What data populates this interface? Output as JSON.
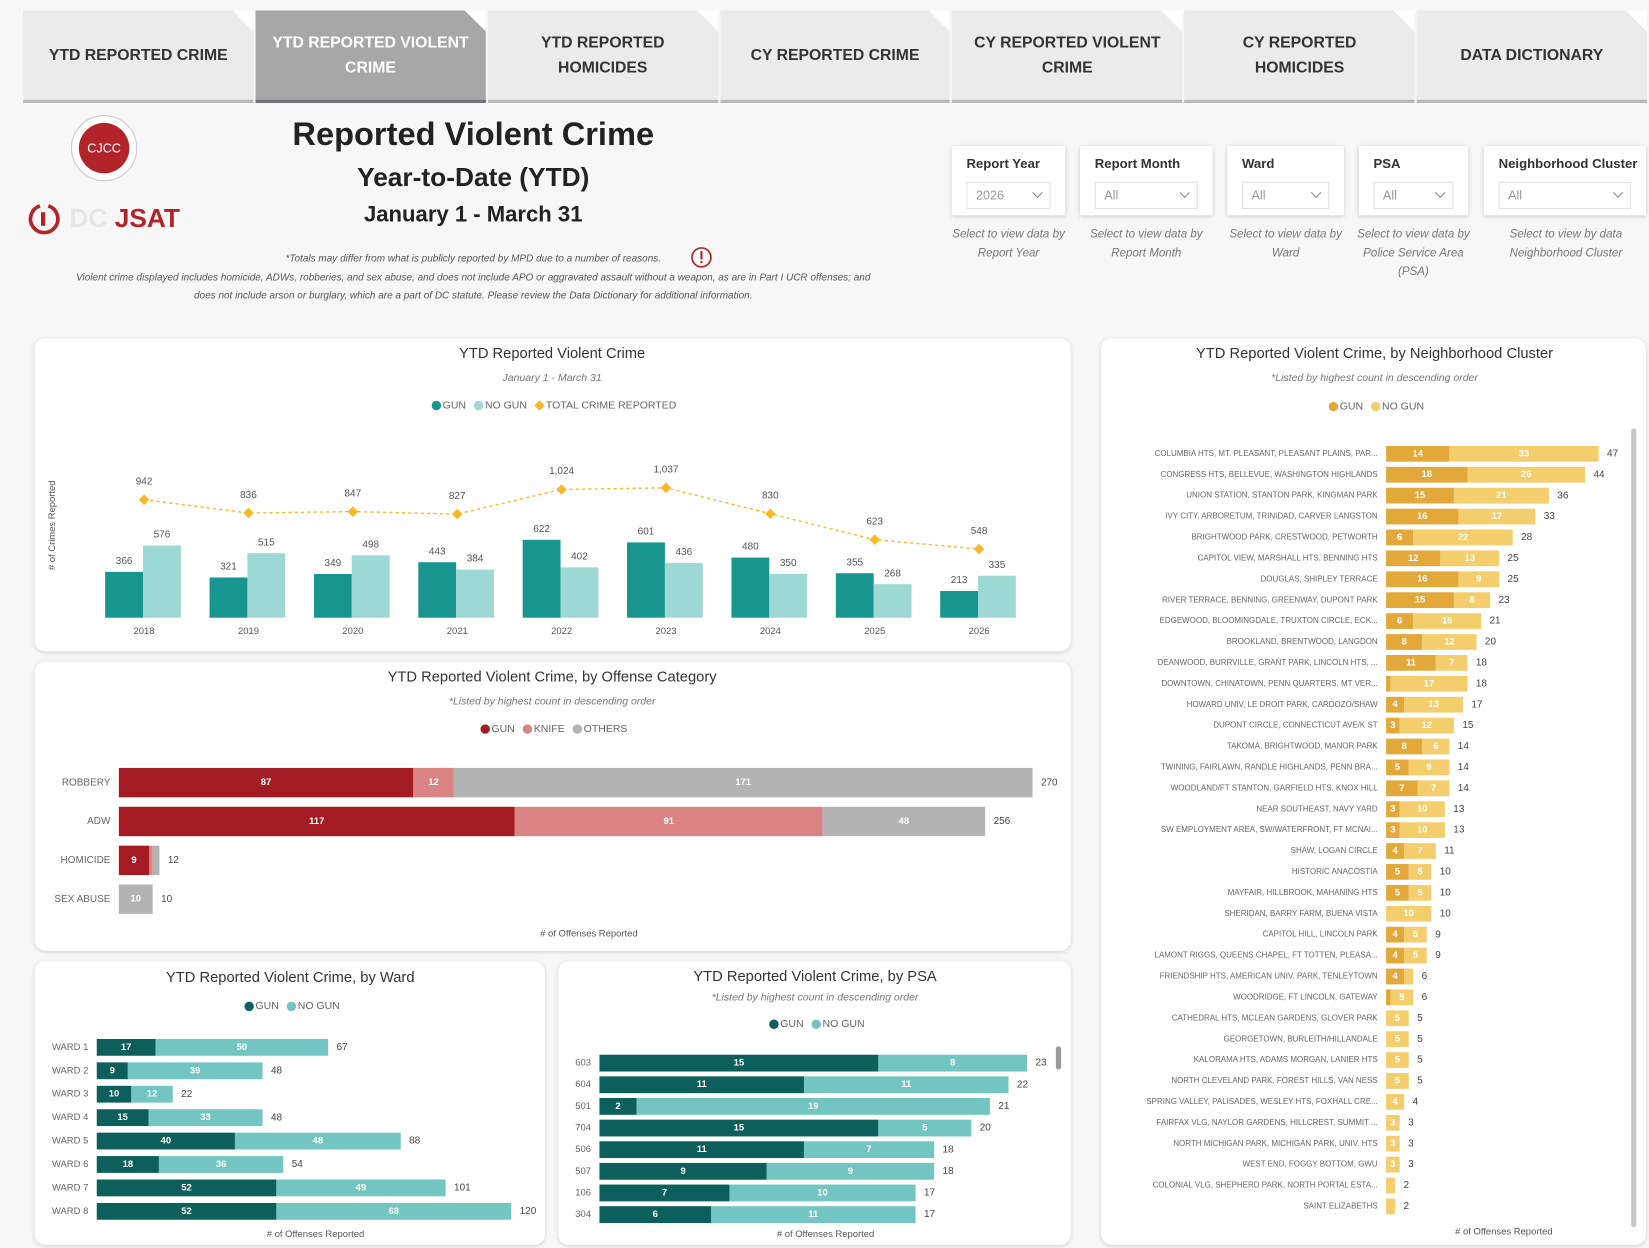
{
  "tabs": [
    {
      "label": "YTD REPORTED CRIME"
    },
    {
      "label": "YTD REPORTED VIOLENT CRIME",
      "selected": true
    },
    {
      "label": "YTD REPORTED HOMICIDES"
    },
    {
      "label": "CY REPORTED CRIME"
    },
    {
      "label": "CY REPORTED VIOLENT CRIME"
    },
    {
      "label": "CY REPORTED HOMICIDES"
    },
    {
      "label": "DATA DICTIONARY"
    }
  ],
  "header": {
    "logo_top": "CJCC",
    "logo_prefix": "DC",
    "logo_name": "JSAT",
    "title": "Reported Violent Crime",
    "subtitle": "Year-to-Date (YTD)",
    "date_range": "January 1 - March 31",
    "note": "*Totals may differ from what is publicly reported by MPD due to a number of reasons.",
    "disclaimer": [
      "Violent crime displayed includes homicide, ADWs, robberies, and sex abuse, and does not include APO or aggravated assault without a weapon, as are in Part I UCR offenses; and",
      "does not include arson or burglary, which are a part of DC statute. Please review the Data Dictionary for additional information."
    ]
  },
  "filters": [
    {
      "label": "Report Year",
      "value": "2026",
      "caption": "Select to view data by Report Year"
    },
    {
      "label": "Report Month",
      "value": "All",
      "caption": "Select to view data by Report Month"
    },
    {
      "label": "Ward",
      "value": "All",
      "caption": "Select to view data by Ward"
    },
    {
      "label": "PSA",
      "value": "All",
      "caption": "Select to view data by Police Service Area (PSA)"
    },
    {
      "label": "Neighborhood Cluster",
      "value": "All",
      "caption": "Select to view by data Neighborhood Cluster"
    }
  ],
  "chart_data": [
    {
      "type": "combo",
      "title": "YTD Reported Violent Crime",
      "subtitle": "January 1 - March 31",
      "ylabel": "# of Crimes Reported",
      "ylim": [
        0,
        1300
      ],
      "categories": [
        "2018",
        "2019",
        "2020",
        "2021",
        "2022",
        "2023",
        "2024",
        "2025",
        "2026"
      ],
      "series": [
        {
          "name": "GUN",
          "color": "#17958e",
          "values": [
            366,
            321,
            349,
            443,
            622,
            601,
            480,
            355,
            213
          ]
        },
        {
          "name": "NO GUN",
          "color": "#9ed8d4",
          "values": [
            576,
            515,
            498,
            384,
            402,
            436,
            350,
            268,
            335
          ]
        },
        {
          "name": "TOTAL CRIME REPORTED",
          "color": "#f6b826",
          "kind": "line",
          "values": [
            942,
            836,
            847,
            827,
            1024,
            1037,
            830,
            623,
            548
          ],
          "value_labels": [
            "942",
            "836",
            "847",
            "827",
            "1,024",
            "1,037",
            "830",
            "623",
            "548"
          ]
        }
      ]
    },
    {
      "type": "hbar",
      "title": "YTD Reported Violent Crime, by Offense Category",
      "subtitle": "*Listed by highest count in descending order",
      "xlabel": "# of Offenses Reported",
      "xlim": [
        0,
        280
      ],
      "categories": [
        "ROBBERY",
        "ADW",
        "HOMICIDE",
        "SEX ABUSE"
      ],
      "series": [
        {
          "name": "GUN",
          "color": "#a31c24",
          "values": [
            87,
            117,
            9,
            null
          ]
        },
        {
          "name": "KNIFE",
          "color": "#d98384",
          "values": [
            12,
            91,
            1,
            null
          ]
        },
        {
          "name": "OTHERS",
          "color": "#b3b3b3",
          "values": [
            171,
            48,
            2,
            10
          ]
        }
      ],
      "totals": [
        270,
        256,
        12,
        10
      ]
    },
    {
      "type": "hbar",
      "title": "YTD Reported Violent Crime, by Ward",
      "xlabel": "# of Offenses Reported",
      "xlim": [
        0,
        130
      ],
      "categories": [
        "WARD 1",
        "WARD 2",
        "WARD 3",
        "WARD 4",
        "WARD 5",
        "WARD 6",
        "WARD 7",
        "WARD 8"
      ],
      "series": [
        {
          "name": "GUN",
          "color": "#0d5f5c",
          "values": [
            17,
            9,
            10,
            15,
            40,
            18,
            52,
            52
          ]
        },
        {
          "name": "NO GUN",
          "color": "#72c5c0",
          "values": [
            50,
            39,
            12,
            33,
            48,
            36,
            49,
            68
          ]
        }
      ],
      "totals": [
        67,
        48,
        22,
        48,
        88,
        54,
        101,
        120
      ]
    },
    {
      "type": "hbar",
      "title": "YTD Reported Violent Crime, by PSA",
      "subtitle": "*Listed by highest count in descending order",
      "xlabel": "# of Offenses Reported",
      "xlim": [
        0,
        25
      ],
      "categories": [
        "603",
        "604",
        "501",
        "704",
        "506",
        "507",
        "106",
        "304"
      ],
      "series": [
        {
          "name": "GUN",
          "color": "#0d5f5c",
          "values": [
            15,
            11,
            2,
            15,
            11,
            9,
            7,
            6
          ]
        },
        {
          "name": "NO GUN",
          "color": "#72c5c0",
          "values": [
            8,
            11,
            19,
            5,
            7,
            9,
            10,
            11
          ]
        }
      ],
      "totals": [
        23,
        22,
        21,
        20,
        18,
        18,
        17,
        17
      ]
    },
    {
      "type": "hbar",
      "title": "YTD Reported Violent Crime, by Neighborhood Cluster",
      "subtitle": "*Listed by highest count in descending order",
      "xlabel": "# of Offenses Reported",
      "xlim": [
        0,
        50
      ],
      "categories": [
        "COLUMBIA HTS, MT. PLEASANT, PLEASANT PLAINS, PAR...",
        "CONGRESS HTS, BELLEVUE, WASHINGTON HIGHLANDS",
        "UNION STATION, STANTON PARK, KINGMAN PARK",
        "IVY CITY, ARBORETUM, TRINIDAD, CARVER LANGSTON",
        "BRIGHTWOOD PARK, CRESTWOOD, PETWORTH",
        "CAPITOL VIEW, MARSHALL HTS, BENNING HTS",
        "DOUGLAS, SHIPLEY TERRACE",
        "RIVER TERRACE, BENNING, GREENWAY, DUPONT PARK",
        "EDGEWOOD, BLOOMINGDALE, TRUXTON CIRCLE, ECK...",
        "BROOKLAND, BRENTWOOD, LANGDON",
        "DEANWOOD, BURRVILLE, GRANT PARK, LINCOLN HTS, ...",
        "DOWNTOWN, CHINATOWN, PENN QUARTERS, MT VER...",
        "HOWARD UNIV, LE DROIT PARK, CARDOZO/SHAW",
        "DUPONT CIRCLE, CONNECTICUT AVE/K ST",
        "TAKOMA, BRIGHTWOOD, MANOR PARK",
        "TWINING, FAIRLAWN, RANDLE HIGHLANDS, PENN BRA...",
        "WOODLAND/FT STANTON, GARFIELD HTS, KNOX HILL",
        "NEAR SOUTHEAST, NAVY YARD",
        "SW EMPLOYMENT AREA, SW/WATERFRONT, FT MCNAI...",
        "SHAW, LOGAN CIRCLE",
        "HISTORIC ANACOSTIA",
        "MAYFAIR, HILLBROOK, MAHANING HTS",
        "SHERIDAN, BARRY FARM, BUENA VISTA",
        "CAPITOL HILL, LINCOLN PARK",
        "LAMONT RIGGS, QUEENS CHAPEL, FT TOTTEN, PLEASA...",
        "FRIENDSHIP HTS, AMERICAN UNIV. PARK, TENLEYTOWN",
        "WOODRIDGE, FT LINCOLN, GATEWAY",
        "CATHEDRAL HTS, MCLEAN GARDENS, GLOVER PARK",
        "GEORGETOWN, BURLEITH/HILLANDALE",
        "KALORAMA HTS, ADAMS MORGAN, LANIER HTS",
        "NORTH CLEVELAND PARK, FOREST HILLS, VAN NESS",
        "SPRING VALLEY, PALISADES, WESLEY HTS, FOXHALL CRE...",
        "FAIRFAX VLG, NAYLOR GARDENS, HILLCREST, SUMMIT ...",
        "NORTH MICHIGAN PARK, MICHIGAN PARK, UNIV. HTS",
        "WEST END, FOGGY BOTTOM, GWU",
        "COLONIAL VLG, SHEPHERD PARK, NORTH PORTAL ESTA...",
        "SAINT ELIZABETHS"
      ],
      "series": [
        {
          "name": "GUN",
          "color": "#e2a83a",
          "values": [
            14,
            18,
            15,
            16,
            6,
            12,
            16,
            15,
            6,
            8,
            11,
            1,
            4,
            3,
            8,
            5,
            7,
            3,
            3,
            4,
            5,
            5,
            null,
            4,
            4,
            4,
            1,
            null,
            null,
            null,
            null,
            null,
            null,
            null,
            null,
            null,
            null
          ]
        },
        {
          "name": "NO GUN",
          "color": "#f4cd6c",
          "values": [
            33,
            26,
            21,
            17,
            22,
            13,
            9,
            8,
            15,
            12,
            7,
            17,
            13,
            12,
            6,
            9,
            7,
            10,
            10,
            7,
            5,
            5,
            10,
            5,
            5,
            2,
            5,
            5,
            5,
            5,
            5,
            4,
            3,
            3,
            3,
            2,
            2
          ]
        }
      ],
      "totals": [
        47,
        44,
        36,
        33,
        28,
        25,
        25,
        23,
        21,
        20,
        18,
        18,
        17,
        15,
        14,
        14,
        14,
        13,
        13,
        11,
        10,
        10,
        10,
        9,
        9,
        6,
        6,
        5,
        5,
        5,
        5,
        4,
        3,
        3,
        3,
        2,
        2
      ]
    }
  ]
}
